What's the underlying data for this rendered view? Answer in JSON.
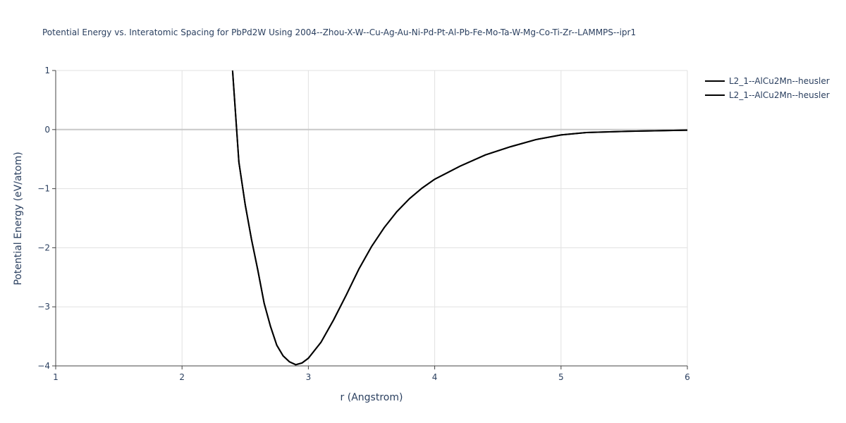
{
  "chart_data": {
    "type": "line",
    "title": "Potential Energy vs. Interatomic Spacing for PbPd2W Using 2004--Zhou-X-W--Cu-Ag-Au-Ni-Pd-Pt-Al-Pb-Fe-Mo-Ta-W-Mg-Co-Ti-Zr--LAMMPS--ipr1",
    "x_label": "r (Angstrom)",
    "y_label": "Potential Energy (eV/atom)",
    "xlim": [
      1,
      6
    ],
    "ylim": [
      -4,
      1
    ],
    "xticks": [
      1,
      2,
      3,
      4,
      5,
      6
    ],
    "yticks": [
      {
        "value": -4,
        "label": "−4"
      },
      {
        "value": -3,
        "label": "−3"
      },
      {
        "value": -2,
        "label": "−2"
      },
      {
        "value": -1,
        "label": "−1"
      },
      0,
      1
    ],
    "grid": true,
    "legend": "right",
    "x": [
      2.4,
      2.45,
      2.5,
      2.55,
      2.6,
      2.65,
      2.7,
      2.75,
      2.8,
      2.85,
      2.9,
      2.95,
      3.0,
      3.1,
      3.2,
      3.3,
      3.4,
      3.5,
      3.6,
      3.7,
      3.8,
      3.9,
      4.0,
      4.2,
      4.4,
      4.6,
      4.8,
      5.0,
      5.2,
      5.5,
      6.0
    ],
    "series": [
      {
        "name": "L2_1--AlCu2Mn--heusler",
        "color": "#000000",
        "values": [
          1,
          -0.55,
          -1.27,
          -1.86,
          -2.38,
          -2.94,
          -3.33,
          -3.65,
          -3.83,
          -3.93,
          -3.98,
          -3.95,
          -3.87,
          -3.6,
          -3.22,
          -2.8,
          -2.36,
          -1.98,
          -1.66,
          -1.39,
          -1.17,
          -0.99,
          -0.84,
          -0.62,
          -0.43,
          -0.29,
          -0.17,
          -0.09,
          -0.05,
          -0.03,
          -0.01
        ]
      },
      {
        "name": "L2_1--AlCu2Mn--heusler",
        "color": "#000000",
        "values": [
          1,
          -0.55,
          -1.27,
          -1.86,
          -2.38,
          -2.94,
          -3.33,
          -3.65,
          -3.83,
          -3.93,
          -3.98,
          -3.95,
          -3.87,
          -3.6,
          -3.22,
          -2.8,
          -2.36,
          -1.98,
          -1.66,
          -1.39,
          -1.17,
          -0.99,
          -0.84,
          -0.62,
          -0.43,
          -0.29,
          -0.17,
          -0.09,
          -0.05,
          -0.03,
          -0.01
        ]
      }
    ]
  }
}
